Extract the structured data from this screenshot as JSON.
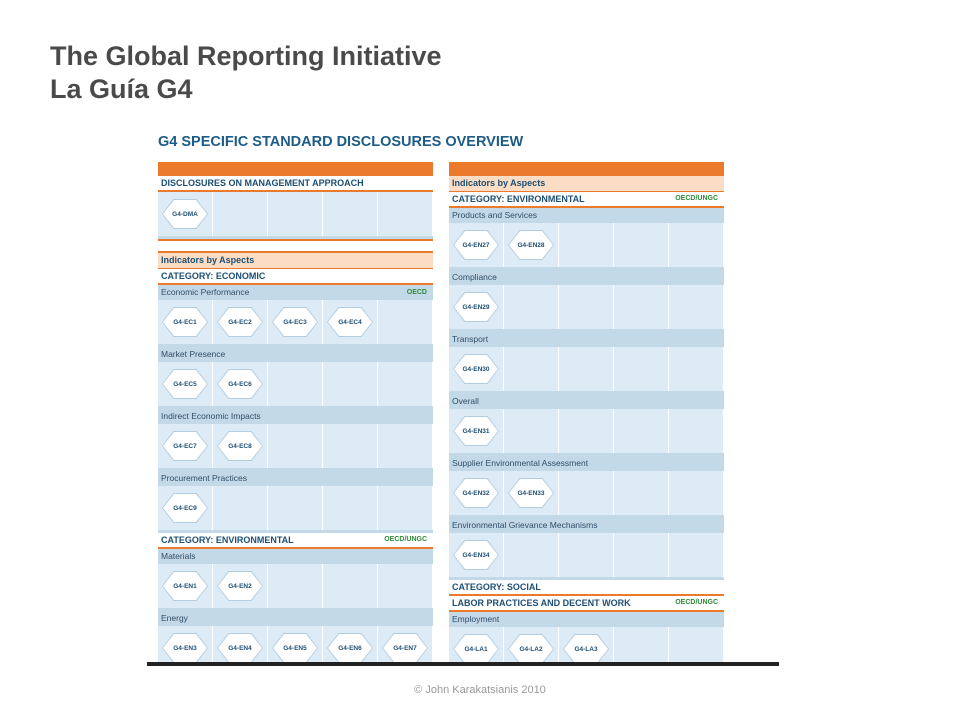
{
  "slide": {
    "title_line1": "The Global Reporting Initiative",
    "title_line2": "La Guía G4",
    "footer": "© John Karakatsianis 2010"
  },
  "figure": {
    "title": "G4 SPECIFIC STANDARD DISCLOSURES OVERVIEW",
    "left": {
      "dma_header": "DISCLOSURES ON MANAGEMENT APPROACH",
      "dma_code": "G4-DMA",
      "indicators_header": "Indicators by Aspects",
      "economic_header": "CATEGORY: ECONOMIC",
      "econ_perf": {
        "label": "Economic Performance",
        "tag": "OECD",
        "codes": [
          "G4-EC1",
          "G4-EC2",
          "G4-EC3",
          "G4-EC4"
        ]
      },
      "market": {
        "label": "Market Presence",
        "codes": [
          "G4-EC5",
          "G4-EC6"
        ]
      },
      "indirect": {
        "label": "Indirect Economic Impacts",
        "codes": [
          "G4-EC7",
          "G4-EC8"
        ]
      },
      "procurement": {
        "label": "Procurement Practices",
        "codes": [
          "G4-EC9"
        ]
      },
      "env_header": "CATEGORY: ENVIRONMENTAL",
      "env_tag": "OECD/UNGC",
      "materials": {
        "label": "Materials",
        "codes": [
          "G4-EN1",
          "G4-EN2"
        ]
      },
      "energy": {
        "label": "Energy",
        "codes": [
          "G4-EN3",
          "G4-EN4",
          "G4-EN5",
          "G4-EN6",
          "G4-EN7"
        ]
      }
    },
    "right": {
      "indicators_header": "Indicators by Aspects",
      "env_header": "CATEGORY: ENVIRONMENTAL",
      "env_tag": "OECD/UNGC",
      "products": {
        "label": "Products and Services",
        "codes": [
          "G4-EN27",
          "G4-EN28"
        ]
      },
      "compliance": {
        "label": "Compliance",
        "codes": [
          "G4-EN29"
        ]
      },
      "transport": {
        "label": "Transport",
        "codes": [
          "G4-EN30"
        ]
      },
      "overall": {
        "label": "Overall",
        "codes": [
          "G4-EN31"
        ]
      },
      "supplier": {
        "label": "Supplier Environmental Assessment",
        "codes": [
          "G4-EN32",
          "G4-EN33"
        ]
      },
      "grievance": {
        "label": "Environmental Grievance Mechanisms",
        "codes": [
          "G4-EN34"
        ]
      },
      "social_header": "CATEGORY: SOCIAL",
      "labor_header": "LABOR PRACTICES AND DECENT WORK",
      "labor_tag": "OECD/UNGC",
      "employment": {
        "label": "Employment",
        "codes": [
          "G4-LA1",
          "G4-LA2",
          "G4-LA3"
        ]
      }
    }
  }
}
